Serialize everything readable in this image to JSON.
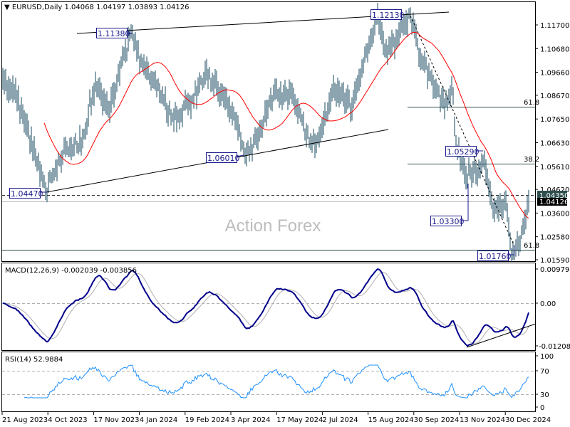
{
  "header": {
    "arrow": "▼",
    "symbol": "EURUSD,Daily",
    "open": "1.04068",
    "high": "1.04197",
    "low": "1.03893",
    "close": "1.04126"
  },
  "watermark": "Action Forex",
  "price_axis": [
    "1.11700",
    "1.10680",
    "1.09660",
    "1.08670",
    "1.07650",
    "1.06630",
    "1.05610",
    "1.04620",
    "1.03600",
    "1.02580",
    "1.01590"
  ],
  "price_tags": {
    "dashed_level": "1.04350",
    "current": "1.04126"
  },
  "annotations": [
    "1.11380",
    "1.12130",
    "1.04470",
    "1.06010",
    "1.05290",
    "1.03300",
    "1.01760"
  ],
  "fib": {
    "upper": "61.8",
    "middle": "38.2",
    "lower": "61.8"
  },
  "macd": {
    "label": "MACD(12,26,9) -0.002039 -0.003856",
    "axis": [
      "0.009795",
      "0.00",
      "-0.012081"
    ]
  },
  "rsi": {
    "label": "RSI(14) 52.9884",
    "axis": [
      "100",
      "70",
      "30",
      "0"
    ]
  },
  "x_axis": [
    "21 Aug 2023",
    "4 Oct 2023",
    "17 Nov 2023",
    "4 Jan 2024",
    "19 Feb 2024",
    "3 Apr 2024",
    "17 May 2024",
    "2 Jul 2024",
    "15 Aug 2024",
    "30 Sep 2024",
    "13 Nov 2024",
    "30 Dec 2024"
  ],
  "colors": {
    "bars": "#17485f",
    "ma": "#ff0000",
    "macd": "#00008b",
    "signal": "#b0b0b0",
    "rsi": "#1e90ff",
    "label_box": "#1a1a8c"
  },
  "chart_data": {
    "type": "ohlc",
    "title": "EURUSD, Daily",
    "ylim": [
      1.0159,
      1.117
    ],
    "anchors_bar_close": [
      [
        0,
        1.094
      ],
      [
        8,
        1.088
      ],
      [
        18,
        1.07
      ],
      [
        30,
        1.0447
      ],
      [
        43,
        1.064
      ],
      [
        55,
        1.066
      ],
      [
        65,
        1.092
      ],
      [
        75,
        1.08
      ],
      [
        90,
        1.1138
      ],
      [
        98,
        1.1
      ],
      [
        108,
        1.091
      ],
      [
        120,
        1.076
      ],
      [
        133,
        1.085
      ],
      [
        143,
        1.097
      ],
      [
        153,
        1.088
      ],
      [
        163,
        1.076
      ],
      [
        170,
        1.0601
      ],
      [
        178,
        1.069
      ],
      [
        190,
        1.087
      ],
      [
        203,
        1.087
      ],
      [
        213,
        1.069
      ],
      [
        220,
        1.067
      ],
      [
        233,
        1.09
      ],
      [
        245,
        1.081
      ],
      [
        253,
        1.099
      ],
      [
        263,
        1.1213
      ],
      [
        270,
        1.104
      ],
      [
        278,
        1.113
      ],
      [
        286,
        1.1213
      ],
      [
        293,
        1.103
      ],
      [
        303,
        1.091
      ],
      [
        310,
        1.082
      ],
      [
        315,
        1.091
      ],
      [
        318,
        1.066
      ],
      [
        325,
        1.052
      ],
      [
        330,
        1.0529
      ],
      [
        338,
        1.057
      ],
      [
        345,
        1.037
      ],
      [
        353,
        1.04
      ],
      [
        357,
        1.0176
      ],
      [
        362,
        1.022
      ],
      [
        369,
        1.04126
      ]
    ],
    "moving_average_period": 30,
    "macd": {
      "params": [
        12,
        26,
        9
      ],
      "macd": -0.002039,
      "signal": -0.003856,
      "ylim": [
        -0.012081,
        0.009795
      ]
    },
    "rsi": {
      "period": 14,
      "value": 52.9884,
      "levels": [
        30,
        70
      ],
      "ylim": [
        0,
        100
      ]
    }
  }
}
